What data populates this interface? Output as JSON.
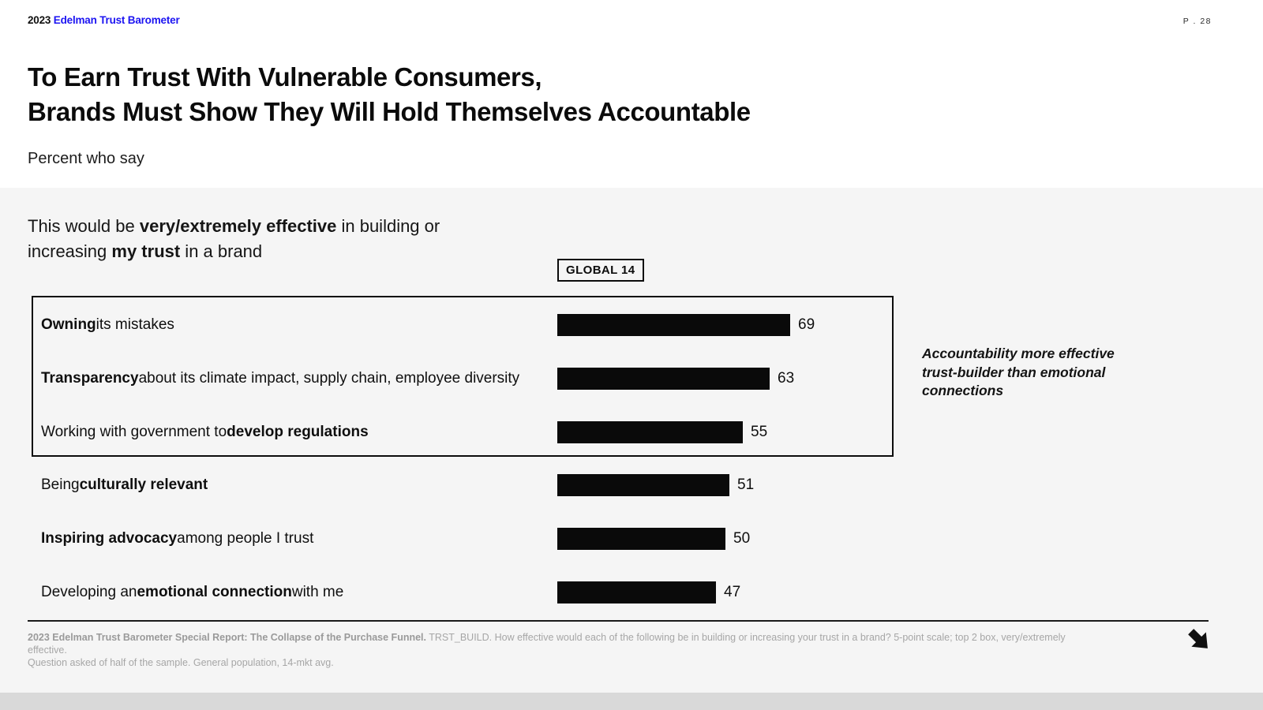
{
  "header": {
    "year": "2023",
    "brand": "Edelman Trust Barometer",
    "page": "P . 28"
  },
  "title": {
    "line1": "To Earn Trust With Vulnerable Consumers,",
    "line2": "Brands Must Show They Will Hold Themselves Accountable"
  },
  "subtitle": "Percent who say",
  "question": {
    "segments": [
      {
        "text": "This would be ",
        "bold": false
      },
      {
        "text": "very/extremely effective",
        "bold": true
      },
      {
        "text": " in building or increasing ",
        "bold": false
      },
      {
        "text": "my trust",
        "bold": true
      },
      {
        "text": " in a brand",
        "bold": false
      }
    ]
  },
  "column_header": "GLOBAL 14",
  "annotation": "Accountability more effective trust-builder than emotional connections",
  "chart_data": {
    "type": "bar",
    "orientation": "horizontal",
    "title": "Percent who say this would be very/extremely effective in building or increasing my trust in a brand",
    "xlabel": "",
    "ylabel": "",
    "xlim": [
      0,
      100
    ],
    "grid": false,
    "bar_color": "#0a0a0a",
    "column_header": "GLOBAL 14",
    "highlighted_rows": [
      0,
      1,
      2
    ],
    "categories": [
      "Owning its mistakes",
      "Transparency about its climate impact, supply chain, employee diversity",
      "Working with government to develop regulations",
      "Being culturally relevant",
      "Inspiring advocacy among people I trust",
      "Developing an emotional connection with me"
    ],
    "values": [
      69,
      63,
      55,
      51,
      50,
      47
    ],
    "rows": [
      {
        "value": 69,
        "segments": [
          {
            "text": "Owning",
            "bold": true
          },
          {
            "text": " its mistakes",
            "bold": false
          }
        ]
      },
      {
        "value": 63,
        "segments": [
          {
            "text": "Transparency",
            "bold": true
          },
          {
            "text": " about its climate impact, supply chain, employee diversity",
            "bold": false
          }
        ]
      },
      {
        "value": 55,
        "segments": [
          {
            "text": "Working with government to ",
            "bold": false
          },
          {
            "text": "develop regulations",
            "bold": true
          }
        ]
      },
      {
        "value": 51,
        "segments": [
          {
            "text": "Being ",
            "bold": false
          },
          {
            "text": "culturally relevant",
            "bold": true
          }
        ]
      },
      {
        "value": 50,
        "segments": [
          {
            "text": "Inspiring advocacy",
            "bold": true
          },
          {
            "text": " among people I trust",
            "bold": false
          }
        ]
      },
      {
        "value": 47,
        "segments": [
          {
            "text": "Developing an ",
            "bold": false
          },
          {
            "text": "emotional connection",
            "bold": true
          },
          {
            "text": " with me",
            "bold": false
          }
        ]
      }
    ]
  },
  "footer": {
    "line1_bold": "2023 Edelman Trust Barometer Special Report: The Collapse of the Purchase Funnel.",
    "line1_rest": " TRST_BUILD. How effective would each of the following be in building or increasing your trust in a brand? 5-point scale; top 2 box, very/extremely effective.",
    "line2": "Question asked of half of the sample. General population, 14-mkt avg."
  },
  "colors": {
    "brand_blue": "#1c14f2",
    "bar": "#0a0a0a",
    "band_background": "#f5f5f5",
    "footer_gray": "#a6a6a6"
  }
}
